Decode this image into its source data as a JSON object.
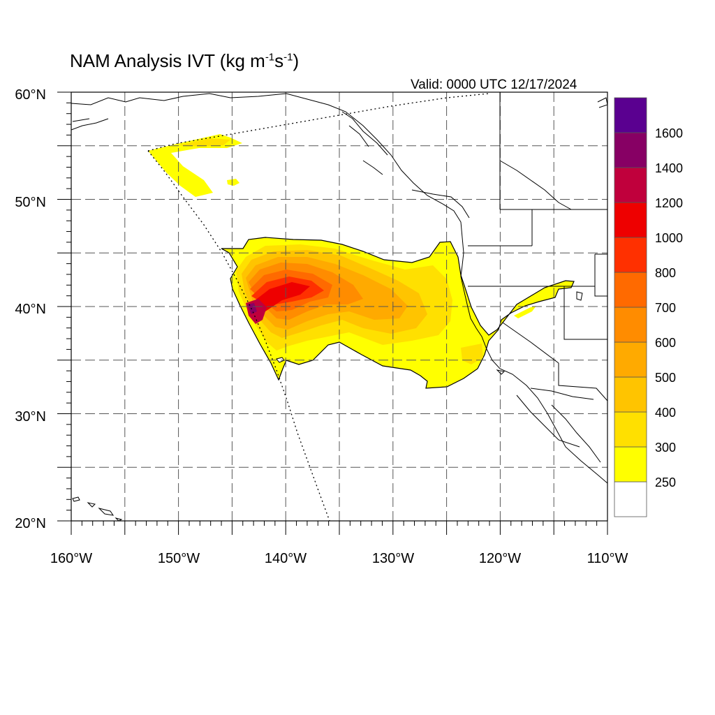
{
  "title": {
    "prefix": "NAM Analysis IVT (kg m",
    "exp1": "-1",
    "mid": "s",
    "exp2": "-1",
    "suffix": ")"
  },
  "valid_label": "Valid: 0000 UTC 12/17/2024",
  "map": {
    "lon_range": [
      -160,
      -110
    ],
    "lat_range": [
      20,
      60
    ],
    "lon_tick_labels": [
      "160°W",
      "150°W",
      "140°W",
      "130°W",
      "120°W",
      "110°W"
    ],
    "lat_tick_labels": [
      "20°N",
      "30°N",
      "40°N",
      "50°N",
      "60°N"
    ],
    "grid": "dashed every 5 degrees"
  },
  "colorbar": {
    "labels": [
      "250",
      "300",
      "400",
      "500",
      "600",
      "700",
      "800",
      "1000",
      "1200",
      "1400",
      "1600"
    ],
    "colors": [
      "#ffffff",
      "#ffff00",
      "#ffe000",
      "#ffc400",
      "#ffaa00",
      "#ff8c00",
      "#ff6a00",
      "#ff3000",
      "#ee0000",
      "#c0003c",
      "#870064",
      "#5a0090"
    ]
  }
}
